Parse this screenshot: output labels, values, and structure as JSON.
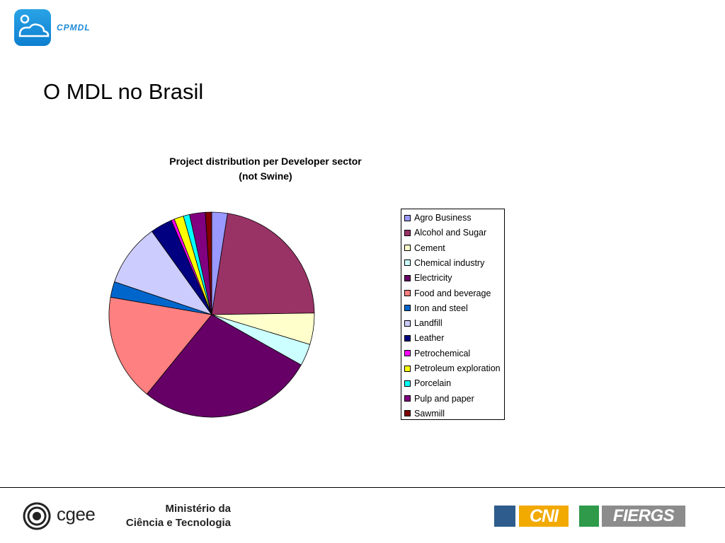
{
  "header": {
    "logo_text": "CPMDL",
    "page_title": "O MDL no Brasil"
  },
  "chart_data": {
    "type": "pie",
    "title": "Project distribution per Developer sector",
    "subtitle": "(not Swine)",
    "legend_position": "right",
    "slices": [
      {
        "label": "Agro Business",
        "value": 2.5,
        "color": "#9999FF"
      },
      {
        "label": "Alcohol and Sugar",
        "value": 22.5,
        "color": "#993366"
      },
      {
        "label": "Cement",
        "value": 5.0,
        "color": "#FFFFCC"
      },
      {
        "label": "Chemical industry",
        "value": 3.5,
        "color": "#CCFFFF"
      },
      {
        "label": "Electricity",
        "value": 28.0,
        "color": "#660066"
      },
      {
        "label": "Food and beverage",
        "value": 17.0,
        "color": "#FF8080"
      },
      {
        "label": "Iron and steel",
        "value": 2.5,
        "color": "#0066CC"
      },
      {
        "label": "Landfill",
        "value": 10.0,
        "color": "#CCCCFF"
      },
      {
        "label": "Leather",
        "value": 3.5,
        "color": "#000080"
      },
      {
        "label": "Petrochemical",
        "value": 0.5,
        "color": "#FF00FF"
      },
      {
        "label": "Petroleum exploration",
        "value": 1.5,
        "color": "#FFFF00"
      },
      {
        "label": "Porcelain",
        "value": 1.0,
        "color": "#00FFFF"
      },
      {
        "label": "Pulp and paper",
        "value": 2.5,
        "color": "#800080"
      },
      {
        "label": "Sawmill",
        "value": 1.0,
        "color": "#800000"
      }
    ]
  },
  "footer": {
    "cgee_text": "cgee",
    "ministry_line1": "Ministério da",
    "ministry_line2": "Ciência e Tecnologia",
    "cni_text": "CNI",
    "fiergs_text": "FIERGS"
  }
}
